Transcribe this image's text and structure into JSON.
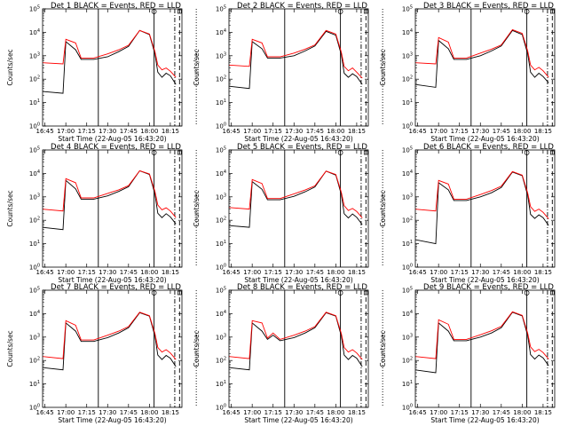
{
  "figure": {
    "y_axis_scale": "log",
    "y_tick_labels": [
      "10^5",
      "10^4",
      "10^3",
      "10^2",
      "10^1",
      "10^0"
    ],
    "x_tick_labels": [
      "16:45",
      "17:00",
      "17:15",
      "17:30",
      "17:45",
      "18:00",
      "18:15"
    ],
    "colors": {
      "events": "#000000",
      "lld": "#ff0000",
      "axes": "#000000",
      "background": "#ffffff"
    }
  },
  "chart_data": [
    {
      "type": "line",
      "title": "Det 1 BLACK = Events, RED = LLD",
      "xlabel": "Start Time (22-Aug-05 16:43:20)",
      "ylabel": "Counts/sec",
      "ylim": [
        1,
        100000
      ],
      "xlim": [
        "16:43:20",
        "18:23:20"
      ],
      "series": [
        {
          "name": "Events",
          "color": "#000000",
          "x": [
            "16:43",
            "16:58",
            "17:00",
            "17:07",
            "17:11",
            "17:15",
            "17:20",
            "17:30",
            "17:38",
            "17:45",
            "17:53",
            "18:00",
            "18:04",
            "18:06",
            "18:09",
            "18:12",
            "18:15",
            "18:19"
          ],
          "y": [
            30,
            25,
            4000,
            1800,
            700,
            700,
            700,
            900,
            1500,
            2500,
            12000,
            8000,
            1200,
            200,
            120,
            180,
            140,
            60
          ]
        },
        {
          "name": "LLD",
          "color": "#ff0000",
          "x": [
            "16:43",
            "16:58",
            "17:00",
            "17:07",
            "17:11",
            "17:15",
            "17:20",
            "17:30",
            "17:38",
            "17:45",
            "17:53",
            "18:00",
            "18:04",
            "18:06",
            "18:09",
            "18:12",
            "18:15",
            "18:19"
          ],
          "y": [
            500,
            450,
            5000,
            3500,
            800,
            800,
            800,
            1200,
            1800,
            2800,
            12000,
            8500,
            1500,
            400,
            250,
            300,
            220,
            120
          ]
        }
      ]
    },
    {
      "type": "line",
      "title": "Det 2 BLACK = Events, RED = LLD",
      "xlabel": "Start Time (22-Aug-05 16:43:20)",
      "ylabel": "Counts/sec",
      "ylim": [
        1,
        100000
      ],
      "xlim": [
        "16:43:20",
        "18:23:20"
      ],
      "series": [
        {
          "name": "Events",
          "color": "#000000",
          "x": [
            "16:43",
            "16:58",
            "17:00",
            "17:07",
            "17:11",
            "17:15",
            "17:20",
            "17:30",
            "17:38",
            "17:45",
            "17:53",
            "18:00",
            "18:04",
            "18:06",
            "18:09",
            "18:12",
            "18:15",
            "18:19"
          ],
          "y": [
            50,
            40,
            4000,
            2000,
            800,
            800,
            800,
            1000,
            1600,
            2600,
            11000,
            7500,
            1100,
            180,
            120,
            170,
            130,
            60
          ]
        },
        {
          "name": "LLD",
          "color": "#ff0000",
          "x": [
            "16:43",
            "16:58",
            "17:00",
            "17:07",
            "17:11",
            "17:15",
            "17:20",
            "17:30",
            "17:38",
            "17:45",
            "17:53",
            "18:00",
            "18:04",
            "18:06",
            "18:09",
            "18:12",
            "18:15",
            "18:19"
          ],
          "y": [
            400,
            350,
            5000,
            3500,
            900,
            900,
            900,
            1300,
            1900,
            2900,
            12000,
            8500,
            1400,
            350,
            230,
            300,
            200,
            110
          ]
        }
      ]
    },
    {
      "type": "line",
      "title": "Det 3 BLACK = Events, RED = LLD",
      "xlabel": "Start Time (22-Aug-05 16:43:20)",
      "ylabel": "Counts/sec",
      "ylim": [
        1,
        100000
      ],
      "xlim": [
        "16:43:20",
        "18:23:20"
      ],
      "series": [
        {
          "name": "Events",
          "color": "#000000",
          "x": [
            "16:43",
            "16:58",
            "17:00",
            "17:07",
            "17:11",
            "17:15",
            "17:20",
            "17:30",
            "17:38",
            "17:45",
            "17:53",
            "18:00",
            "18:04",
            "18:06",
            "18:09",
            "18:12",
            "18:15",
            "18:19"
          ],
          "y": [
            60,
            45,
            4500,
            2000,
            700,
            700,
            700,
            1000,
            1600,
            2600,
            12000,
            8000,
            1200,
            200,
            120,
            180,
            130,
            70
          ]
        },
        {
          "name": "LLD",
          "color": "#ff0000",
          "x": [
            "16:43",
            "16:58",
            "17:00",
            "17:07",
            "17:11",
            "17:15",
            "17:20",
            "17:30",
            "17:38",
            "17:45",
            "17:53",
            "18:00",
            "18:04",
            "18:06",
            "18:09",
            "18:12",
            "18:15",
            "18:19"
          ],
          "y": [
            500,
            450,
            6000,
            3800,
            800,
            800,
            800,
            1300,
            1900,
            2900,
            13000,
            9000,
            1600,
            400,
            250,
            320,
            230,
            120
          ]
        }
      ]
    },
    {
      "type": "line",
      "title": "Det 4 BLACK = Events, RED = LLD",
      "xlabel": "Start Time (22-Aug-05 16:43:20)",
      "ylabel": "Counts/sec",
      "ylim": [
        1,
        100000
      ],
      "xlim": [
        "16:43:20",
        "18:23:20"
      ],
      "series": [
        {
          "name": "Events",
          "color": "#000000",
          "x": [
            "16:43",
            "16:58",
            "17:00",
            "17:07",
            "17:11",
            "17:15",
            "17:20",
            "17:30",
            "17:38",
            "17:45",
            "17:53",
            "18:00",
            "18:04",
            "18:06",
            "18:09",
            "18:12",
            "18:15",
            "18:19"
          ],
          "y": [
            50,
            40,
            5000,
            2200,
            800,
            800,
            800,
            1100,
            1700,
            2700,
            13000,
            9000,
            1300,
            200,
            130,
            190,
            140,
            70
          ]
        },
        {
          "name": "LLD",
          "color": "#ff0000",
          "x": [
            "16:43",
            "16:58",
            "17:00",
            "17:07",
            "17:11",
            "17:15",
            "17:20",
            "17:30",
            "17:38",
            "17:45",
            "17:53",
            "18:00",
            "18:04",
            "18:06",
            "18:09",
            "18:12",
            "18:15",
            "18:19"
          ],
          "y": [
            300,
            250,
            6000,
            4000,
            900,
            900,
            900,
            1400,
            2000,
            3000,
            13000,
            9500,
            1700,
            450,
            280,
            340,
            250,
            130
          ]
        }
      ]
    },
    {
      "type": "line",
      "title": "Det 5 BLACK = Events, RED = LLD",
      "xlabel": "Start Time (22-Aug-05 16:43:20)",
      "ylabel": "Counts/sec",
      "ylim": [
        1,
        100000
      ],
      "xlim": [
        "16:43:20",
        "18:23:20"
      ],
      "series": [
        {
          "name": "Events",
          "color": "#000000",
          "x": [
            "16:43",
            "16:58",
            "17:00",
            "17:07",
            "17:11",
            "17:15",
            "17:20",
            "17:30",
            "17:38",
            "17:45",
            "17:53",
            "18:00",
            "18:04",
            "18:06",
            "18:09",
            "18:12",
            "18:15",
            "18:19"
          ],
          "y": [
            60,
            50,
            4500,
            2100,
            750,
            750,
            750,
            1050,
            1650,
            2650,
            12500,
            8500,
            1250,
            190,
            125,
            185,
            135,
            65
          ]
        },
        {
          "name": "LLD",
          "color": "#ff0000",
          "x": [
            "16:43",
            "16:58",
            "17:00",
            "17:07",
            "17:11",
            "17:15",
            "17:20",
            "17:30",
            "17:38",
            "17:45",
            "17:53",
            "18:00",
            "18:04",
            "18:06",
            "18:09",
            "18:12",
            "18:15",
            "18:19"
          ],
          "y": [
            350,
            300,
            5500,
            3700,
            850,
            850,
            850,
            1350,
            1950,
            2950,
            12500,
            9000,
            1550,
            420,
            260,
            320,
            240,
            125
          ]
        }
      ]
    },
    {
      "type": "line",
      "title": "Det 6 BLACK = Events, RED = LLD",
      "xlabel": "Start Time (22-Aug-05 16:43:20)",
      "ylabel": "Counts/sec",
      "ylim": [
        1,
        100000
      ],
      "xlim": [
        "16:43:20",
        "18:23:20"
      ],
      "series": [
        {
          "name": "Events",
          "color": "#000000",
          "x": [
            "16:43",
            "16:58",
            "17:00",
            "17:07",
            "17:11",
            "17:15",
            "17:20",
            "17:30",
            "17:38",
            "17:45",
            "17:53",
            "18:00",
            "18:04",
            "18:06",
            "18:09",
            "18:12",
            "18:15",
            "18:19"
          ],
          "y": [
            15,
            10,
            4000,
            2000,
            700,
            700,
            700,
            1000,
            1500,
            2500,
            11500,
            8000,
            1150,
            180,
            120,
            170,
            130,
            60
          ]
        },
        {
          "name": "LLD",
          "color": "#ff0000",
          "x": [
            "16:43",
            "16:58",
            "17:00",
            "17:07",
            "17:11",
            "17:15",
            "17:20",
            "17:30",
            "17:38",
            "17:45",
            "17:53",
            "18:00",
            "18:04",
            "18:06",
            "18:09",
            "18:12",
            "18:15",
            "18:19"
          ],
          "y": [
            300,
            250,
            5000,
            3500,
            800,
            800,
            800,
            1250,
            1850,
            2850,
            12000,
            8500,
            1450,
            380,
            240,
            300,
            220,
            115
          ]
        }
      ]
    },
    {
      "type": "line",
      "title": "Det 7 BLACK = Events, RED = LLD",
      "xlabel": "Start Time (22-Aug-05 16:43:20)",
      "ylabel": "Counts/sec",
      "ylim": [
        1,
        100000
      ],
      "xlim": [
        "16:43:20",
        "18:23:20"
      ],
      "series": [
        {
          "name": "Events",
          "color": "#000000",
          "x": [
            "16:43",
            "16:58",
            "17:00",
            "17:07",
            "17:11",
            "17:15",
            "17:20",
            "17:30",
            "17:38",
            "17:45",
            "17:53",
            "18:00",
            "18:04",
            "18:06",
            "18:09",
            "18:12",
            "18:15",
            "18:19"
          ],
          "y": [
            50,
            40,
            4000,
            1800,
            650,
            650,
            650,
            950,
            1500,
            2500,
            11000,
            7800,
            1100,
            170,
            110,
            165,
            125,
            55
          ]
        },
        {
          "name": "LLD",
          "color": "#ff0000",
          "x": [
            "16:43",
            "16:58",
            "17:00",
            "17:07",
            "17:11",
            "17:15",
            "17:20",
            "17:30",
            "17:38",
            "17:45",
            "17:53",
            "18:00",
            "18:04",
            "18:06",
            "18:09",
            "18:12",
            "18:15",
            "18:19"
          ],
          "y": [
            150,
            120,
            5000,
            3200,
            750,
            750,
            750,
            1200,
            1800,
            2800,
            11500,
            8200,
            1400,
            360,
            230,
            290,
            210,
            110
          ]
        }
      ]
    },
    {
      "type": "line",
      "title": "Det 8 BLACK = Events, RED = LLD",
      "xlabel": "Start Time (22-Aug-05 16:43:20)",
      "ylabel": "Counts/sec",
      "ylim": [
        1,
        100000
      ],
      "xlim": [
        "16:43:20",
        "18:23:20"
      ],
      "series": [
        {
          "name": "Events",
          "color": "#000000",
          "x": [
            "16:43",
            "16:58",
            "17:00",
            "17:07",
            "17:11",
            "17:15",
            "17:20",
            "17:30",
            "17:38",
            "17:45",
            "17:53",
            "18:00",
            "18:04",
            "18:06",
            "18:09",
            "18:12",
            "18:15",
            "18:19"
          ],
          "y": [
            50,
            40,
            4000,
            1800,
            800,
            1200,
            700,
            950,
            1500,
            2500,
            11000,
            7800,
            1100,
            170,
            110,
            165,
            125,
            55
          ]
        },
        {
          "name": "LLD",
          "color": "#ff0000",
          "x": [
            "16:43",
            "16:58",
            "17:00",
            "17:07",
            "17:11",
            "17:15",
            "17:20",
            "17:30",
            "17:38",
            "17:45",
            "17:53",
            "18:00",
            "18:04",
            "18:06",
            "18:09",
            "18:12",
            "18:15",
            "18:19"
          ],
          "y": [
            150,
            120,
            5000,
            4000,
            900,
            1500,
            800,
            1200,
            1800,
            2800,
            11500,
            8200,
            1400,
            360,
            230,
            290,
            210,
            110
          ]
        }
      ]
    },
    {
      "type": "line",
      "title": "Det 9 BLACK = Events, RED = LLD",
      "xlabel": "Start Time (22-Aug-05 16:43:20)",
      "ylabel": "Counts/sec",
      "ylim": [
        1,
        100000
      ],
      "xlim": [
        "16:43:20",
        "18:23:20"
      ],
      "series": [
        {
          "name": "Events",
          "color": "#000000",
          "x": [
            "16:43",
            "16:58",
            "17:00",
            "17:07",
            "17:11",
            "17:15",
            "17:20",
            "17:30",
            "17:38",
            "17:45",
            "17:53",
            "18:00",
            "18:04",
            "18:06",
            "18:09",
            "18:12",
            "18:15",
            "18:19"
          ],
          "y": [
            40,
            30,
            4000,
            1800,
            700,
            700,
            700,
            1000,
            1500,
            2500,
            11500,
            8000,
            1150,
            180,
            115,
            170,
            130,
            60
          ]
        },
        {
          "name": "LLD",
          "color": "#ff0000",
          "x": [
            "16:43",
            "16:58",
            "17:00",
            "17:07",
            "17:11",
            "17:15",
            "17:20",
            "17:30",
            "17:38",
            "17:45",
            "17:53",
            "18:00",
            "18:04",
            "18:06",
            "18:09",
            "18:12",
            "18:15",
            "18:19"
          ],
          "y": [
            150,
            120,
            5500,
            3500,
            800,
            800,
            800,
            1250,
            1850,
            2850,
            12000,
            8500,
            1450,
            380,
            240,
            300,
            220,
            115
          ]
        }
      ]
    }
  ]
}
